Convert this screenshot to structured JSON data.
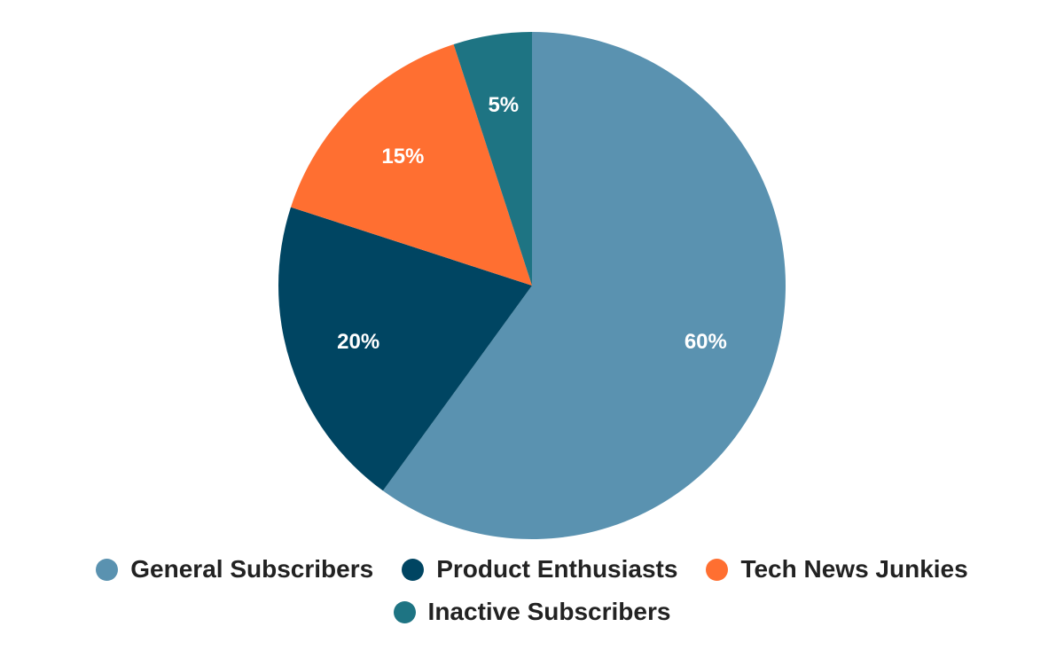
{
  "chart_data": {
    "type": "pie",
    "title": "",
    "slices": [
      {
        "label": "General Subscribers",
        "value": 60,
        "value_label": "60%",
        "color": "#5a92b0"
      },
      {
        "label": "Product Enthusiasts",
        "value": 20,
        "value_label": "20%",
        "color": "#004562"
      },
      {
        "label": "Tech News Junkies",
        "value": 15,
        "value_label": "15%",
        "color": "#ff6f31"
      },
      {
        "label": "Inactive Subscribers",
        "value": 5,
        "value_label": "5%",
        "color": "#1e7483"
      }
    ],
    "start_angle": "top",
    "direction": "clockwise",
    "legend_position": "bottom"
  }
}
